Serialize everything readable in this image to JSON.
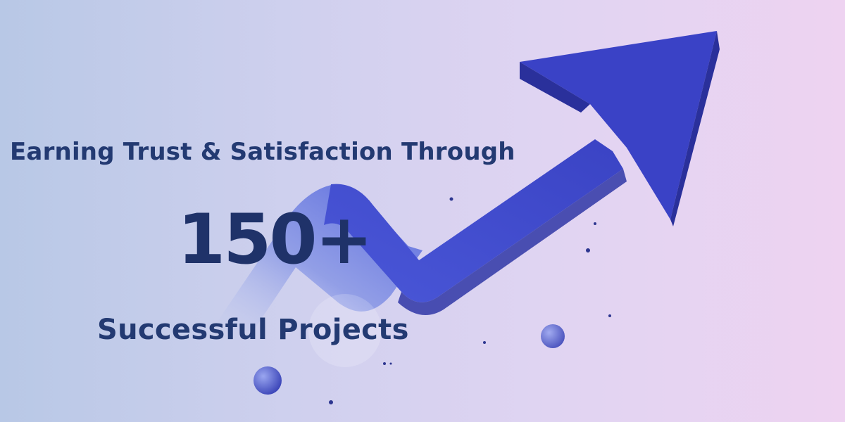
{
  "banner": {
    "headline": "Earning Trust & Satisfaction Through",
    "stat": "150+",
    "tagline": "Successful Projects"
  },
  "colors": {
    "text": "#233a72",
    "arrow": "#3c45c6",
    "background_left": "#b8c8e6",
    "background_right": "#eed3f1"
  },
  "icons": {
    "arrow": "trend-up-arrow-icon"
  }
}
